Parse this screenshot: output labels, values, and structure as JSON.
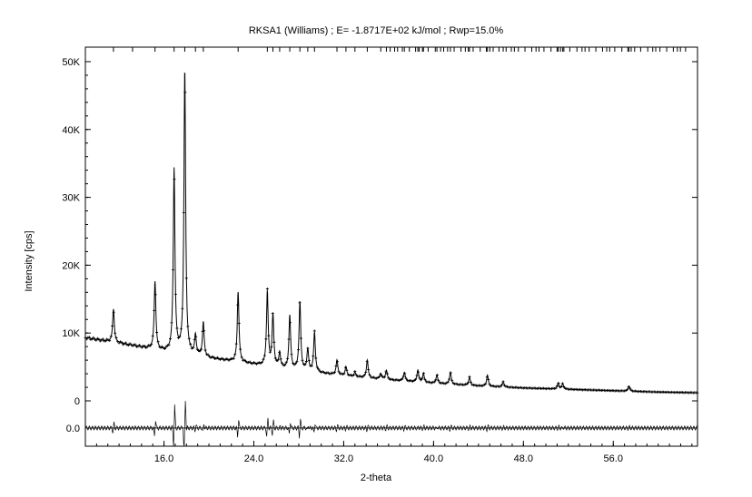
{
  "chart_data": {
    "type": "line",
    "title": "RKSA1 (Williams) ; E= -1.8717E+02 kJ/mol ; Rwp=15.0%",
    "xlabel": "2-theta",
    "ylabel": "Intensity [cps]",
    "xlim": [
      9.0,
      63.5
    ],
    "ylim": [
      -7000,
      52000
    ],
    "x_ticks": [
      {
        "value": 16.0,
        "label": "16.0"
      },
      {
        "value": 24.0,
        "label": "24.0"
      },
      {
        "value": 32.0,
        "label": "32.0"
      },
      {
        "value": 40.0,
        "label": "40.0"
      },
      {
        "value": 48.0,
        "label": "48.0"
      },
      {
        "value": 56.0,
        "label": "56.0"
      }
    ],
    "y_ticks": [
      {
        "value": 0,
        "label": "0"
      },
      {
        "value": 10000,
        "label": "10K"
      },
      {
        "value": 20000,
        "label": "20K"
      },
      {
        "value": 30000,
        "label": "30K"
      },
      {
        "value": 40000,
        "label": "40K"
      },
      {
        "value": 50000,
        "label": "50K"
      }
    ],
    "difference_zero": {
      "value": -4000,
      "label": "0.0"
    },
    "background": [
      [
        9.0,
        9300
      ],
      [
        12,
        8500
      ],
      [
        16,
        7300
      ],
      [
        20,
        6300
      ],
      [
        24,
        5400
      ],
      [
        28,
        4500
      ],
      [
        32,
        3700
      ],
      [
        36,
        3100
      ],
      [
        40,
        2600
      ],
      [
        44,
        2200
      ],
      [
        48,
        1900
      ],
      [
        52,
        1700
      ],
      [
        56,
        1500
      ],
      [
        60,
        1300
      ],
      [
        63.5,
        1200
      ]
    ],
    "peaks": [
      {
        "x": 11.5,
        "y": 13500
      },
      {
        "x": 13.2,
        "y": 8200
      },
      {
        "x": 15.2,
        "y": 17500
      },
      {
        "x": 16.9,
        "y": 34000
      },
      {
        "x": 17.85,
        "y": 48500
      },
      {
        "x": 18.8,
        "y": 9500
      },
      {
        "x": 19.5,
        "y": 11500
      },
      {
        "x": 22.6,
        "y": 16000
      },
      {
        "x": 25.2,
        "y": 16000
      },
      {
        "x": 25.7,
        "y": 12500
      },
      {
        "x": 26.3,
        "y": 7000
      },
      {
        "x": 27.2,
        "y": 12500
      },
      {
        "x": 28.1,
        "y": 14500
      },
      {
        "x": 28.8,
        "y": 7500
      },
      {
        "x": 29.4,
        "y": 10000
      },
      {
        "x": 31.4,
        "y": 6000
      },
      {
        "x": 32.2,
        "y": 5000
      },
      {
        "x": 33.0,
        "y": 4200
      },
      {
        "x": 34.1,
        "y": 6000
      },
      {
        "x": 35.3,
        "y": 4000
      },
      {
        "x": 35.8,
        "y": 4500
      },
      {
        "x": 37.4,
        "y": 4200
      },
      {
        "x": 38.6,
        "y": 4500
      },
      {
        "x": 39.1,
        "y": 4000
      },
      {
        "x": 40.3,
        "y": 3800
      },
      {
        "x": 41.5,
        "y": 4200
      },
      {
        "x": 43.2,
        "y": 3500
      },
      {
        "x": 44.8,
        "y": 3800
      },
      {
        "x": 46.2,
        "y": 2800
      },
      {
        "x": 51.1,
        "y": 2600
      },
      {
        "x": 51.5,
        "y": 2500
      },
      {
        "x": 57.4,
        "y": 2200
      }
    ],
    "grid": false,
    "legend": "none"
  }
}
